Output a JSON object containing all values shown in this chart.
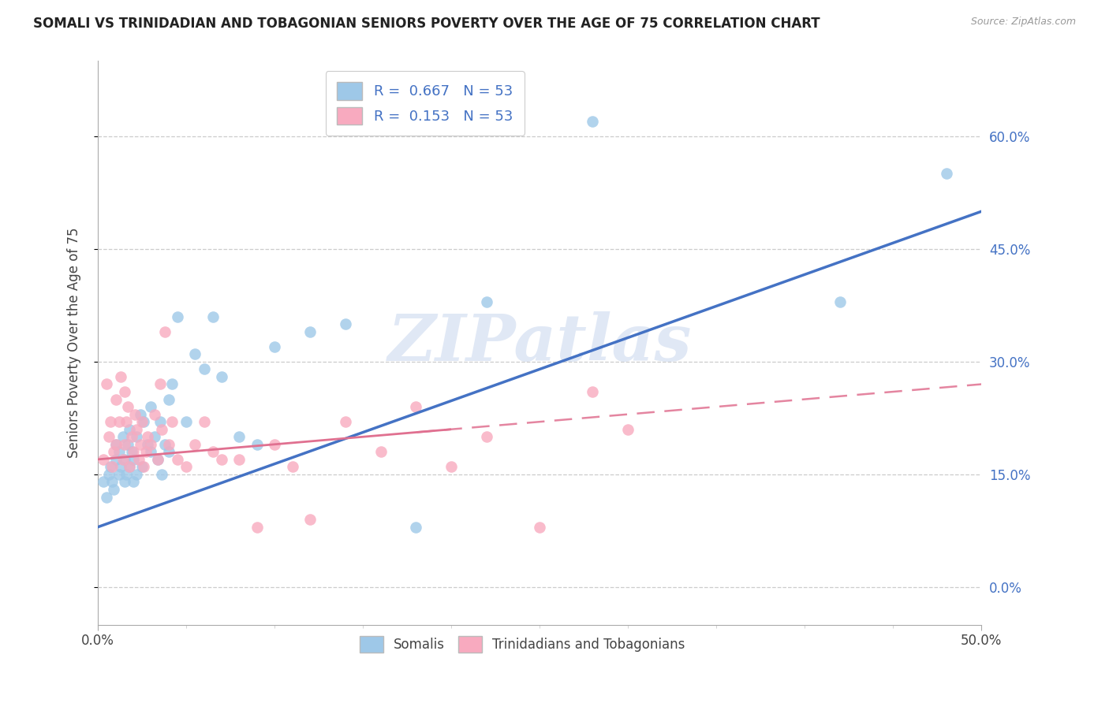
{
  "title": "SOMALI VS TRINIDADIAN AND TOBAGONIAN SENIORS POVERTY OVER THE AGE OF 75 CORRELATION CHART",
  "source": "Source: ZipAtlas.com",
  "ylabel": "Seniors Poverty Over the Age of 75",
  "xlim": [
    0.0,
    0.5
  ],
  "ylim": [
    -0.05,
    0.7
  ],
  "x_tick_vals": [
    0.0,
    0.5
  ],
  "x_tick_labels": [
    "0.0%",
    "50.0%"
  ],
  "x_minor_ticks": [
    0.05,
    0.1,
    0.15,
    0.2,
    0.25,
    0.3,
    0.35,
    0.4,
    0.45
  ],
  "y_tick_vals": [
    0.0,
    0.15,
    0.3,
    0.45,
    0.6
  ],
  "y_tick_labels": [
    "0.0%",
    "15.0%",
    "30.0%",
    "45.0%",
    "60.0%"
  ],
  "somali_R": 0.667,
  "somali_N": 53,
  "tnt_R": 0.153,
  "tnt_N": 53,
  "legend_label_1": "Somalis",
  "legend_label_2": "Trinidadians and Tobagonians",
  "color_blue": "#9EC8E8",
  "color_pink": "#F8AABF",
  "line_blue": "#4472C4",
  "line_pink": "#E07090",
  "watermark": "ZIPatlas",
  "watermark_color": "#D0DCF0",
  "title_color": "#222222",
  "source_color": "#999999",
  "axis_label_color": "#4472C4",
  "text_color": "#444444",
  "grid_color": "#CCCCCC",
  "somali_x": [
    0.003,
    0.005,
    0.006,
    0.007,
    0.008,
    0.009,
    0.01,
    0.01,
    0.012,
    0.012,
    0.013,
    0.014,
    0.015,
    0.015,
    0.016,
    0.017,
    0.018,
    0.018,
    0.019,
    0.02,
    0.02,
    0.022,
    0.022,
    0.024,
    0.025,
    0.026,
    0.028,
    0.03,
    0.03,
    0.032,
    0.034,
    0.035,
    0.036,
    0.038,
    0.04,
    0.04,
    0.042,
    0.045,
    0.05,
    0.055,
    0.06,
    0.065,
    0.07,
    0.08,
    0.09,
    0.1,
    0.12,
    0.14,
    0.18,
    0.22,
    0.28,
    0.42,
    0.48
  ],
  "somali_y": [
    0.14,
    0.12,
    0.15,
    0.16,
    0.14,
    0.13,
    0.17,
    0.19,
    0.15,
    0.18,
    0.16,
    0.2,
    0.14,
    0.17,
    0.15,
    0.19,
    0.16,
    0.21,
    0.18,
    0.14,
    0.17,
    0.15,
    0.2,
    0.23,
    0.16,
    0.22,
    0.19,
    0.18,
    0.24,
    0.2,
    0.17,
    0.22,
    0.15,
    0.19,
    0.25,
    0.18,
    0.27,
    0.36,
    0.22,
    0.31,
    0.29,
    0.36,
    0.28,
    0.2,
    0.19,
    0.32,
    0.34,
    0.35,
    0.08,
    0.38,
    0.62,
    0.38,
    0.55
  ],
  "tnt_x": [
    0.003,
    0.005,
    0.006,
    0.007,
    0.008,
    0.009,
    0.01,
    0.01,
    0.012,
    0.013,
    0.014,
    0.015,
    0.015,
    0.016,
    0.017,
    0.018,
    0.019,
    0.02,
    0.021,
    0.022,
    0.023,
    0.024,
    0.025,
    0.026,
    0.027,
    0.028,
    0.03,
    0.032,
    0.034,
    0.035,
    0.036,
    0.038,
    0.04,
    0.042,
    0.045,
    0.05,
    0.055,
    0.06,
    0.065,
    0.07,
    0.08,
    0.09,
    0.1,
    0.11,
    0.12,
    0.14,
    0.16,
    0.18,
    0.2,
    0.22,
    0.25,
    0.28,
    0.3
  ],
  "tnt_y": [
    0.17,
    0.27,
    0.2,
    0.22,
    0.16,
    0.18,
    0.25,
    0.19,
    0.22,
    0.28,
    0.17,
    0.26,
    0.19,
    0.22,
    0.24,
    0.16,
    0.2,
    0.18,
    0.23,
    0.21,
    0.17,
    0.19,
    0.22,
    0.16,
    0.18,
    0.2,
    0.19,
    0.23,
    0.17,
    0.27,
    0.21,
    0.34,
    0.19,
    0.22,
    0.17,
    0.16,
    0.19,
    0.22,
    0.18,
    0.17,
    0.17,
    0.08,
    0.19,
    0.16,
    0.09,
    0.22,
    0.18,
    0.24,
    0.16,
    0.2,
    0.08,
    0.26,
    0.21
  ]
}
